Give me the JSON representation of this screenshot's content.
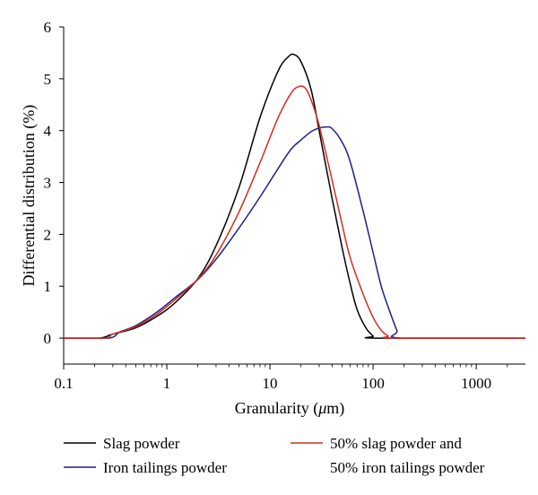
{
  "chart_data": {
    "type": "line",
    "title": "",
    "xlabel_prefix": "Granularity (",
    "xlabel_mu": "μ",
    "xlabel_suffix": "m)",
    "ylabel": "Differential distribution (%)",
    "xscale": "log",
    "xlim": [
      0.1,
      3000
    ],
    "ylim": [
      -0.5,
      6
    ],
    "xticks": [
      0.1,
      1,
      10,
      100,
      1000
    ],
    "xtick_labels": [
      "0.1",
      "1",
      "10",
      "100",
      "1000"
    ],
    "yticks": [
      0,
      1,
      2,
      3,
      4,
      5,
      6
    ],
    "ytick_labels": [
      "0",
      "1",
      "2",
      "3",
      "4",
      "5",
      "6"
    ],
    "grid": false,
    "legend_placement": "bottom",
    "series": [
      {
        "name": "Slag powder",
        "color": "#000000",
        "x": [
          0.1,
          0.22,
          0.3,
          0.5,
          0.8,
          1.2,
          2,
          3,
          5,
          8,
          12,
          15,
          17,
          20,
          25,
          30,
          40,
          50,
          60,
          70,
          85,
          100,
          110,
          3000
        ],
        "y": [
          0,
          0,
          0.08,
          0.2,
          0.42,
          0.68,
          1.15,
          1.78,
          2.9,
          4.25,
          5.15,
          5.42,
          5.47,
          5.33,
          4.8,
          4.0,
          2.7,
          1.75,
          1.05,
          0.55,
          0.2,
          0.04,
          0,
          0
        ]
      },
      {
        "name": "Iron tailings powder",
        "color": "#1f1f8c",
        "x": [
          0.1,
          0.27,
          0.35,
          0.5,
          0.8,
          1.2,
          2,
          3,
          5,
          8,
          12,
          16,
          20,
          25,
          30,
          35,
          40,
          50,
          60,
          80,
          100,
          120,
          140,
          170,
          190,
          3000
        ],
        "y": [
          0,
          0,
          0.12,
          0.24,
          0.5,
          0.78,
          1.13,
          1.52,
          2.12,
          2.72,
          3.27,
          3.64,
          3.82,
          3.98,
          4.05,
          4.07,
          4.04,
          3.78,
          3.4,
          2.45,
          1.65,
          1.0,
          0.6,
          0.15,
          0,
          0
        ]
      },
      {
        "name": "50% slag powder and",
        "name_line2": "50% iron tailings powder",
        "color": "#d42d1e",
        "x": [
          0.1,
          0.25,
          0.3,
          0.5,
          0.8,
          1.2,
          2,
          3,
          5,
          8,
          12,
          16,
          19,
          22,
          25,
          30,
          40,
          50,
          60,
          80,
          100,
          120,
          140,
          160,
          3000
        ],
        "y": [
          0,
          0,
          0.08,
          0.22,
          0.46,
          0.74,
          1.14,
          1.6,
          2.43,
          3.38,
          4.25,
          4.72,
          4.85,
          4.82,
          4.6,
          4.1,
          3.05,
          2.2,
          1.55,
          0.85,
          0.4,
          0.15,
          0.04,
          0,
          0
        ]
      }
    ]
  }
}
